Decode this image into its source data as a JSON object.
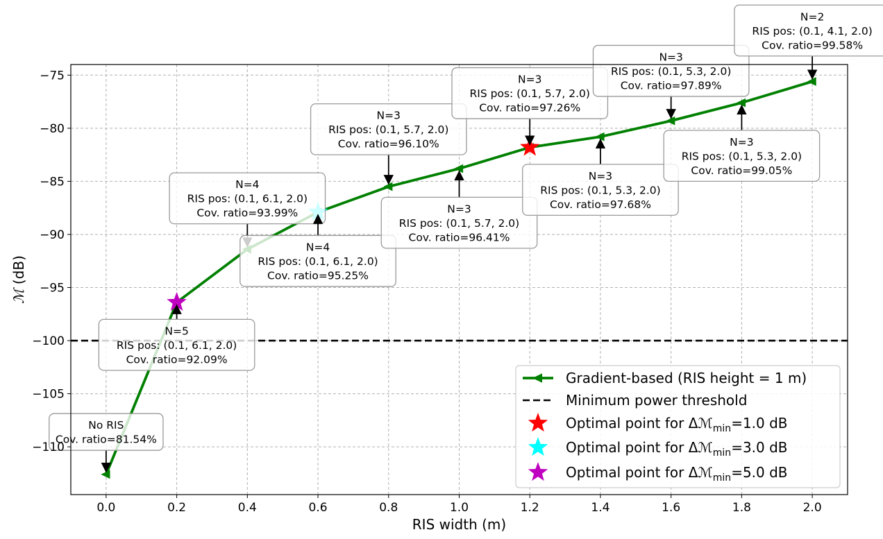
{
  "chart_data": {
    "type": "line",
    "xlabel": "RIS width (m)",
    "ylabel_main": "ℳ",
    "ylabel_unit": " (dB)",
    "xlim": [
      -0.1,
      2.1
    ],
    "ylim": [
      -114.5,
      -74
    ],
    "xticks": [
      0.0,
      0.2,
      0.4,
      0.6,
      0.8,
      1.0,
      1.2,
      1.4,
      1.6,
      1.8,
      2.0
    ],
    "xtick_labels": [
      "0.0",
      "0.2",
      "0.4",
      "0.6",
      "0.8",
      "1.0",
      "1.2",
      "1.4",
      "1.6",
      "1.8",
      "2.0"
    ],
    "yticks": [
      -110,
      -105,
      -100,
      -95,
      -90,
      -85,
      -80,
      -75
    ],
    "ytick_labels": [
      "−110",
      "−105",
      "−100",
      "−95",
      "−90",
      "−85",
      "−80",
      "−75"
    ],
    "grid": true,
    "legend_position": "lower-right",
    "series": [
      {
        "name": "Gradient-based (RIS height = 1 m)",
        "color": "#008000",
        "marker": "triangle-left",
        "x": [
          0.0,
          0.2,
          0.4,
          0.6,
          0.8,
          1.0,
          1.2,
          1.4,
          1.6,
          1.8,
          2.0
        ],
        "y": [
          -112.6,
          -96.4,
          -91.4,
          -87.9,
          -85.5,
          -83.8,
          -81.8,
          -80.8,
          -79.3,
          -77.6,
          -75.6
        ]
      }
    ],
    "threshold": {
      "name": "Minimum power threshold",
      "y": -100,
      "color": "#000000"
    },
    "optimal_points": [
      {
        "x": 1.2,
        "y": -81.8,
        "color": "#ff0000",
        "label_prefix": "Optimal point for Δℳ",
        "label_sub": "min",
        "label_suffix": "=1.0 dB"
      },
      {
        "x": 0.6,
        "y": -87.9,
        "color": "#00ffff",
        "label_prefix": "Optimal point for Δℳ",
        "label_sub": "min",
        "label_suffix": "=3.0 dB"
      },
      {
        "x": 0.2,
        "y": -96.4,
        "color": "#c000c0",
        "label_prefix": "Optimal point for Δℳ",
        "label_sub": "min",
        "label_suffix": "=5.0 dB"
      }
    ],
    "annotations": [
      {
        "x": 0.0,
        "y": -112.6,
        "box_x": 0.0,
        "box_y": -108.6,
        "arrow": "down",
        "lines": [
          "No RIS",
          "Cov. ratio=81.54%"
        ]
      },
      {
        "x": 0.2,
        "y": -96.4,
        "box_x": 0.2,
        "box_y": -100.4,
        "arrow": "up",
        "lines": [
          "N=5",
          "RIS pos: (0.1, 6.1, 2.0)",
          "Cov. ratio=92.09%"
        ]
      },
      {
        "x": 0.4,
        "y": -91.4,
        "box_x": 0.4,
        "box_y": -86.6,
        "arrow": "down",
        "lines": [
          "N=4",
          "RIS pos: (0.1, 6.1, 2.0)",
          "Cov. ratio=93.99%"
        ]
      },
      {
        "x": 0.6,
        "y": -87.9,
        "box_x": 0.6,
        "box_y": -92.5,
        "arrow": "up",
        "lines": [
          "N=4",
          "RIS pos: (0.1, 6.1, 2.0)",
          "Cov. ratio=95.25%"
        ]
      },
      {
        "x": 0.8,
        "y": -85.5,
        "box_x": 0.8,
        "box_y": -80.1,
        "arrow": "down",
        "lines": [
          "N=3",
          "RIS pos: (0.1, 5.7, 2.0)",
          "Cov. ratio=96.10%"
        ]
      },
      {
        "x": 1.0,
        "y": -83.8,
        "box_x": 1.0,
        "box_y": -88.9,
        "arrow": "up",
        "lines": [
          "N=3",
          "RIS pos: (0.1, 5.7, 2.0)",
          "Cov. ratio=96.41%"
        ]
      },
      {
        "x": 1.2,
        "y": -81.8,
        "box_x": 1.2,
        "box_y": -76.7,
        "arrow": "down",
        "lines": [
          "N=3",
          "RIS pos: (0.1, 5.7, 2.0)",
          "Cov. ratio=97.26%"
        ]
      },
      {
        "x": 1.4,
        "y": -80.8,
        "box_x": 1.4,
        "box_y": -85.8,
        "arrow": "up",
        "lines": [
          "N=3",
          "RIS pos: (0.1, 5.3, 2.0)",
          "Cov. ratio=97.68%"
        ]
      },
      {
        "x": 1.6,
        "y": -79.3,
        "box_x": 1.6,
        "box_y": -74.6,
        "arrow": "down",
        "lines": [
          "N=3",
          "RIS pos: (0.1, 5.3, 2.0)",
          "Cov. ratio=97.89%"
        ]
      },
      {
        "x": 1.8,
        "y": -77.6,
        "box_x": 1.8,
        "box_y": -82.6,
        "arrow": "up",
        "lines": [
          "N=3",
          "RIS pos: (0.1, 5.3, 2.0)",
          "Cov. ratio=99.05%"
        ]
      },
      {
        "x": 2.0,
        "y": -75.6,
        "box_x": 2.0,
        "box_y": -70.8,
        "arrow": "down",
        "lines": [
          "N=2",
          "RIS pos: (0.1, 4.1, 2.0)",
          "Cov. ratio=99.58%"
        ]
      }
    ]
  }
}
